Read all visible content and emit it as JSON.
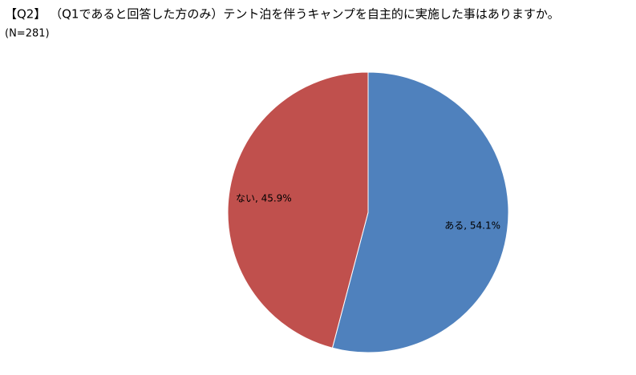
{
  "chart_data": {
    "type": "pie",
    "title": "【Q2】 （Q1であると回答した方のみ）テント泊を伴うキャンプを自主的に実施した事はありますか。",
    "subtitle": "(N=281)",
    "values": [
      54.1,
      45.9
    ],
    "value_labels": [
      "ある, 54.1%",
      "ない, 45.9%"
    ],
    "colors": [
      "#4f81bd",
      "#c0504d"
    ]
  }
}
